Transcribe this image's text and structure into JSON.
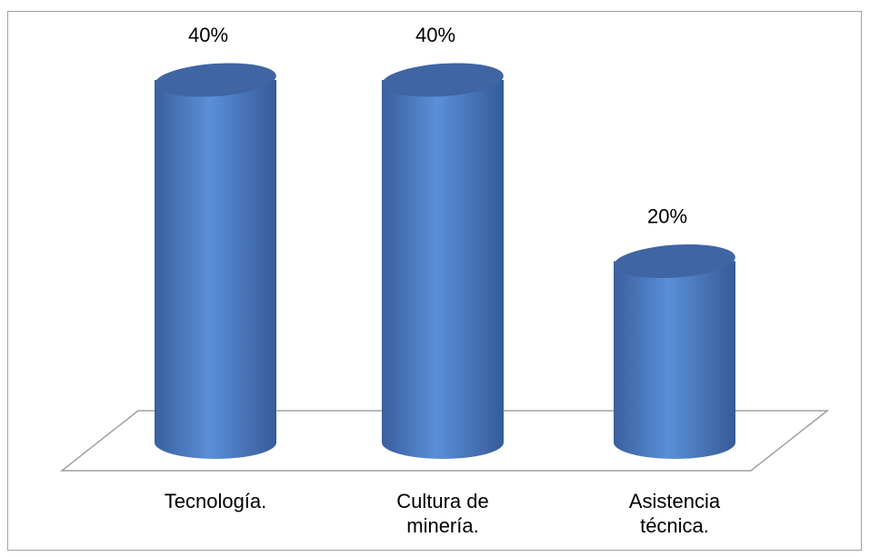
{
  "chart_data": {
    "type": "bar",
    "categories": [
      "Tecnología.",
      "Cultura de minería.",
      "Asistencia técnica."
    ],
    "values": [
      40,
      40,
      20
    ],
    "value_labels": [
      "40%",
      "40%",
      "20%"
    ],
    "color": "#4f81bd"
  }
}
